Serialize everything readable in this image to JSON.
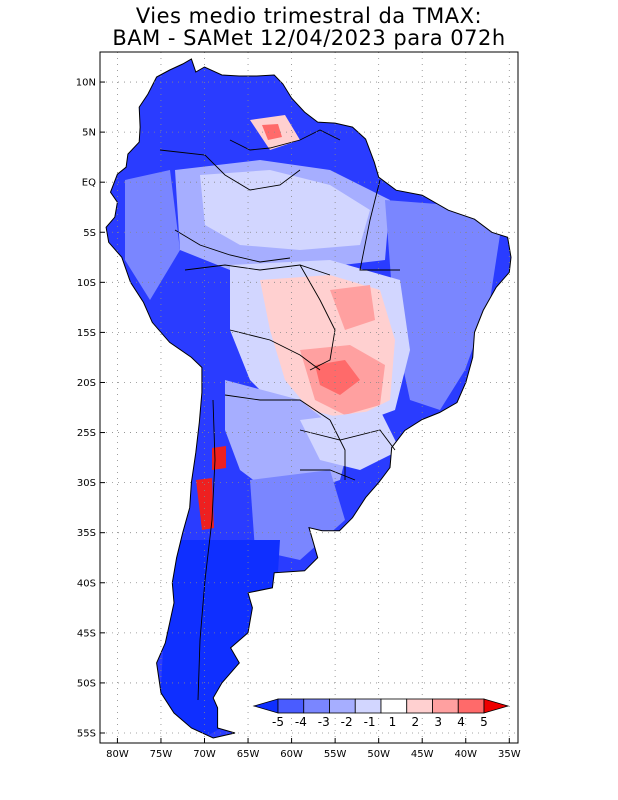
{
  "title_line1": "Vies medio trimestral da TMAX:",
  "title_line2": "BAM - SAMet 12/04/2023  para 072h",
  "map": {
    "lon_range": [
      -82,
      -34
    ],
    "lat_range": [
      -56,
      13
    ],
    "lat_ticks": [
      {
        "value": 10,
        "label": "10N"
      },
      {
        "value": 5,
        "label": "5N"
      },
      {
        "value": 0,
        "label": "EQ"
      },
      {
        "value": -5,
        "label": "5S"
      },
      {
        "value": -10,
        "label": "10S"
      },
      {
        "value": -15,
        "label": "15S"
      },
      {
        "value": -20,
        "label": "20S"
      },
      {
        "value": -25,
        "label": "25S"
      },
      {
        "value": -30,
        "label": "30S"
      },
      {
        "value": -35,
        "label": "35S"
      },
      {
        "value": -40,
        "label": "40S"
      },
      {
        "value": -45,
        "label": "45S"
      },
      {
        "value": -50,
        "label": "50S"
      },
      {
        "value": -55,
        "label": "55S"
      }
    ],
    "lon_ticks": [
      {
        "value": -80,
        "label": "80W"
      },
      {
        "value": -75,
        "label": "75W"
      },
      {
        "value": -70,
        "label": "70W"
      },
      {
        "value": -65,
        "label": "65W"
      },
      {
        "value": -60,
        "label": "60W"
      },
      {
        "value": -55,
        "label": "55W"
      },
      {
        "value": -50,
        "label": "50W"
      },
      {
        "value": -45,
        "label": "45W"
      },
      {
        "value": -40,
        "label": "40W"
      },
      {
        "value": -35,
        "label": "35W"
      }
    ],
    "grid": true,
    "ocean_color": "#ffffff"
  },
  "colorbar": {
    "labels": [
      "-5",
      "-4",
      "-3",
      "-2",
      "-1",
      "1",
      "2",
      "3",
      "4",
      "5"
    ],
    "colors": [
      "#0f2fff",
      "#4a5cff",
      "#7a86ff",
      "#a6aeff",
      "#d2d6ff",
      "#ffffff",
      "#ffd0d0",
      "#ffa0a0",
      "#ff6a6a",
      "#ee2020"
    ],
    "arrow_low_color": "#0f2fff",
    "arrow_high_color": "#ee0000"
  }
}
